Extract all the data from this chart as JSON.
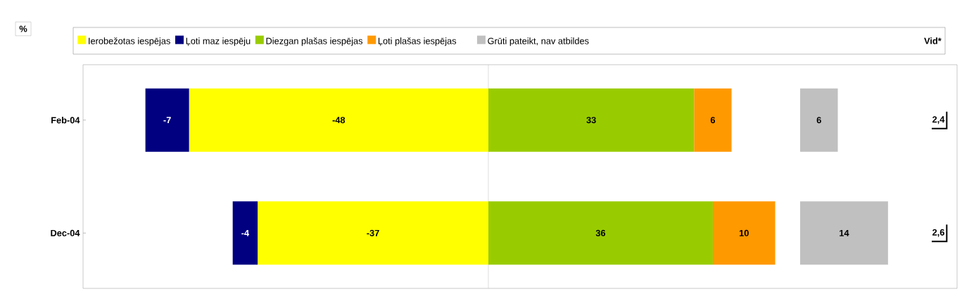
{
  "chart_data": [
    {
      "type": "bar",
      "orientation": "horizontal",
      "stacked": true,
      "xlabel": "%",
      "categories": [
        "Feb-04",
        "Dec-04"
      ],
      "series": [
        {
          "name": "Ierobežotas iespējas",
          "color": "#ffff00",
          "values": [
            -48,
            -37
          ]
        },
        {
          "name": "Ļoti maz iespēju",
          "color": "#000080",
          "values": [
            -7,
            -4
          ]
        },
        {
          "name": "Diezgan plašas iespējas",
          "color": "#99cc00",
          "values": [
            33,
            36
          ]
        },
        {
          "name": "Ļoti plašas iespējas",
          "color": "#ff9900",
          "values": [
            6,
            10
          ]
        }
      ],
      "xlim": [
        -65,
        50
      ],
      "tick_labels": "y",
      "data_labels": true,
      "legend": "top",
      "ref_lines": [
        {
          "axis": "x",
          "value": 0,
          "color": "#c0c0c0"
        }
      ]
    },
    {
      "type": "bar",
      "orientation": "horizontal",
      "categories": [
        "Feb-04",
        "Dec-04"
      ],
      "series": [
        {
          "name": "Grūti pateikt, nav atbildes",
          "color": "#c0c0c0",
          "values": [
            6,
            14
          ]
        }
      ],
      "xlim": [
        0,
        25
      ],
      "tick_labels": false,
      "data_labels": true,
      "legend": "top",
      "annotations": [
        "Vid*",
        {
          "text": "2,4",
          "y": "Feb-04"
        },
        {
          "text": "2,6",
          "y": "Dec-04"
        }
      ]
    }
  ]
}
